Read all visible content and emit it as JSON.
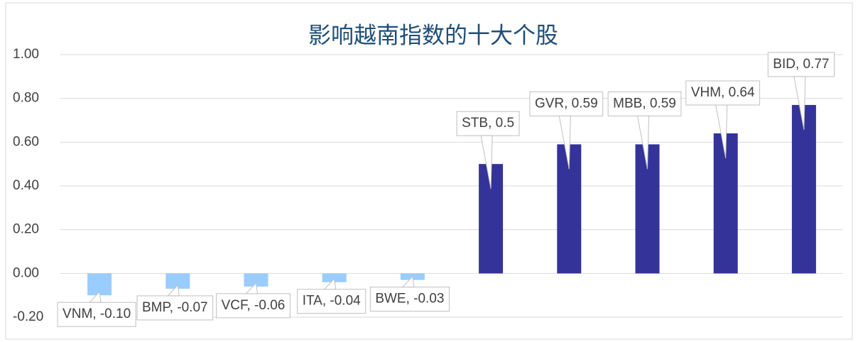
{
  "chart_data": {
    "type": "bar",
    "title": "影响越南指数的十大个股",
    "categories": [
      "VNM",
      "BMP",
      "VCF",
      "ITA",
      "BWE",
      "STB",
      "GVR",
      "MBB",
      "VHM",
      "BID"
    ],
    "values": [
      -0.1,
      -0.07,
      -0.06,
      -0.04,
      -0.03,
      0.5,
      0.59,
      0.59,
      0.64,
      0.77
    ],
    "value_labels": [
      "VNM, -0.10",
      "BMP, -0.07",
      "VCF, -0.06",
      "ITA, -0.04",
      "BWE, -0.03",
      "STB, 0.5",
      "GVR, 0.59",
      "MBB, 0.59",
      "VHM, 0.64",
      "BID, 0.77"
    ],
    "color": "#333399",
    "negative_color": "#99ccff",
    "ylim": [
      -0.2,
      1.0
    ],
    "yticks": [
      {
        "value": -0.2,
        "label": "-0.20"
      },
      {
        "value": 0,
        "label": "0.00"
      },
      {
        "value": 0.2,
        "label": "0.20"
      },
      {
        "value": 0.4,
        "label": "0.40"
      },
      {
        "value": 0.6,
        "label": "0.60"
      },
      {
        "value": 0.8,
        "label": "0.80"
      },
      {
        "value": 1.0,
        "label": "1.00"
      }
    ],
    "grid": true
  }
}
